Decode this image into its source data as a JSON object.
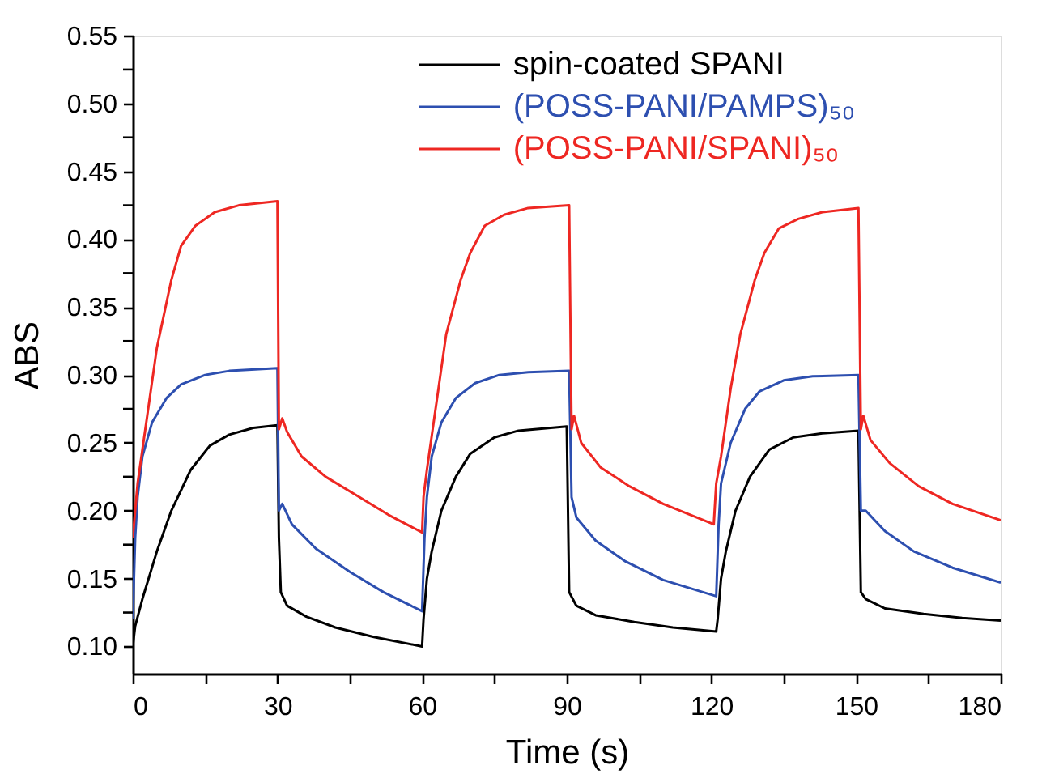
{
  "chart_data": {
    "type": "line",
    "xlabel": "Time (s)",
    "ylabel": "ABS",
    "xlim": [
      0,
      180
    ],
    "ylim": [
      0.08,
      0.55
    ],
    "xticks": [
      0,
      {
        "value": 15,
        "label": null
      },
      30,
      {
        "value": 45,
        "label": null
      },
      60,
      {
        "value": 75,
        "label": null
      },
      90,
      {
        "value": 105,
        "label": null
      },
      120,
      {
        "value": 135,
        "label": null
      },
      150,
      {
        "value": 165,
        "label": null
      },
      180
    ],
    "yticks": [
      {
        "value": 0.1,
        "label": "0.10"
      },
      {
        "value": 0.125,
        "label": null
      },
      {
        "value": 0.15,
        "label": "0.15"
      },
      {
        "value": 0.175,
        "label": null
      },
      {
        "value": 0.2,
        "label": "0.20"
      },
      {
        "value": 0.225,
        "label": null
      },
      {
        "value": 0.25,
        "label": "0.25"
      },
      {
        "value": 0.275,
        "label": null
      },
      {
        "value": 0.3,
        "label": "0.30"
      },
      {
        "value": 0.325,
        "label": null
      },
      {
        "value": 0.35,
        "label": "0.35"
      },
      {
        "value": 0.375,
        "label": null
      },
      {
        "value": 0.4,
        "label": "0.40"
      },
      {
        "value": 0.425,
        "label": null
      },
      {
        "value": 0.45,
        "label": "0.45"
      },
      {
        "value": 0.475,
        "label": null
      },
      {
        "value": 0.5,
        "label": "0.50"
      },
      {
        "value": 0.525,
        "label": null
      },
      {
        "value": 0.55,
        "label": "0.55"
      }
    ],
    "grid": false,
    "legend": "top",
    "line_style": "solid",
    "marker": "none",
    "series": [
      {
        "name": "spin-coated SPANI",
        "color": "#000000",
        "x": [
          0,
          0.5,
          2,
          5,
          8,
          12,
          16,
          20,
          25,
          30,
          30.3,
          30.7,
          32,
          36,
          42,
          50,
          60,
          60.3,
          61,
          62,
          64,
          67,
          70,
          75,
          80,
          90,
          90.5,
          92,
          96,
          104,
          112,
          121,
          121.3,
          122,
          123,
          125,
          128,
          132,
          137,
          143,
          150.5,
          151,
          152,
          156,
          164,
          172,
          180
        ],
        "values": [
          0.1,
          0.115,
          0.135,
          0.17,
          0.2,
          0.23,
          0.248,
          0.256,
          0.261,
          0.263,
          0.18,
          0.14,
          0.13,
          0.122,
          0.114,
          0.107,
          0.1,
          0.12,
          0.15,
          0.17,
          0.2,
          0.225,
          0.242,
          0.254,
          0.259,
          0.262,
          0.14,
          0.13,
          0.123,
          0.118,
          0.114,
          0.111,
          0.12,
          0.15,
          0.17,
          0.2,
          0.225,
          0.245,
          0.254,
          0.257,
          0.259,
          0.14,
          0.135,
          0.128,
          0.124,
          0.121,
          0.119
        ]
      },
      {
        "name": "(POSS-PANI/PAMPS)₅₀",
        "color": "#2d4fb0",
        "x": [
          0,
          0.5,
          1,
          2,
          4,
          7,
          10,
          15,
          20,
          30,
          30.3,
          31,
          33,
          38,
          45,
          52,
          60,
          60.5,
          61,
          62,
          64,
          67,
          71,
          76,
          82,
          90.5,
          91,
          92,
          96,
          102,
          110,
          121,
          121.5,
          122,
          124,
          127,
          130,
          135,
          141,
          150.5,
          151,
          152,
          156,
          162,
          170,
          180
        ],
        "values": [
          0.12,
          0.18,
          0.21,
          0.24,
          0.265,
          0.283,
          0.293,
          0.3,
          0.303,
          0.305,
          0.2,
          0.205,
          0.19,
          0.172,
          0.155,
          0.14,
          0.126,
          0.18,
          0.21,
          0.24,
          0.265,
          0.283,
          0.294,
          0.3,
          0.302,
          0.303,
          0.21,
          0.195,
          0.178,
          0.163,
          0.149,
          0.137,
          0.19,
          0.22,
          0.25,
          0.275,
          0.288,
          0.296,
          0.299,
          0.3,
          0.2,
          0.2,
          0.185,
          0.17,
          0.158,
          0.147
        ]
      },
      {
        "name": "(POSS-PANI/SPANI)₅₀",
        "color": "#ee2722",
        "x": [
          0,
          1,
          3,
          5,
          8,
          10,
          13,
          17,
          22,
          30,
          30.3,
          31,
          32,
          35,
          40,
          47,
          53,
          60,
          60.3,
          61,
          63,
          65,
          68,
          70,
          73,
          77,
          82,
          90.5,
          91,
          91.5,
          93,
          97,
          103,
          110,
          120.5,
          121,
          122,
          124,
          126,
          129,
          131,
          134,
          138,
          143,
          150.5,
          151,
          151.5,
          153,
          157,
          163,
          170,
          180
        ],
        "values": [
          0.18,
          0.22,
          0.27,
          0.32,
          0.37,
          0.395,
          0.41,
          0.42,
          0.425,
          0.428,
          0.26,
          0.268,
          0.258,
          0.24,
          0.225,
          0.21,
          0.197,
          0.184,
          0.21,
          0.23,
          0.28,
          0.33,
          0.37,
          0.39,
          0.41,
          0.418,
          0.423,
          0.425,
          0.26,
          0.27,
          0.25,
          0.232,
          0.218,
          0.205,
          0.19,
          0.22,
          0.24,
          0.29,
          0.33,
          0.37,
          0.39,
          0.408,
          0.415,
          0.42,
          0.423,
          0.26,
          0.27,
          0.252,
          0.235,
          0.218,
          0.205,
          0.193
        ]
      }
    ]
  }
}
